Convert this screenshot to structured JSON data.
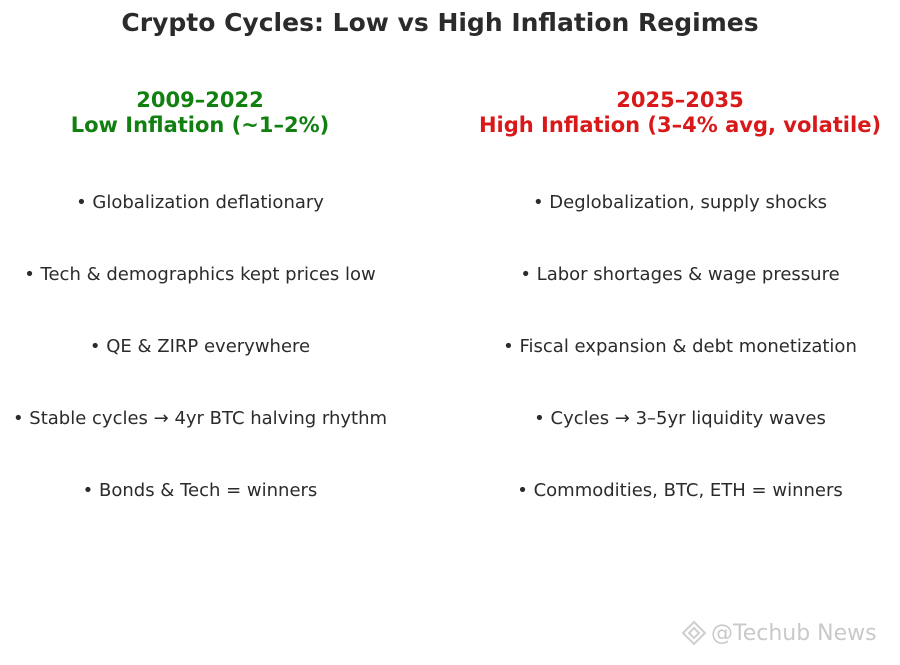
{
  "title": "Crypto Cycles: Low vs High Inflation Regimes",
  "left_column": {
    "period": "2009–2022",
    "regime": "Low Inflation (~1–2%)",
    "color": "#118011",
    "bullets": [
      "Globalization deflationary",
      "Tech & demographics kept prices low",
      "QE & ZIRP everywhere",
      "Stable cycles → 4yr BTC halving rhythm",
      "Bonds & Tech = winners"
    ]
  },
  "right_column": {
    "period": "2025–2035",
    "regime": "High Inflation (3–4% avg, volatile)",
    "color": "#d91919",
    "bullets": [
      "Deglobalization, supply shocks",
      "Labor shortages & wage pressure",
      "Fiscal expansion & debt monetization",
      "Cycles → 3–5yr liquidity waves",
      "Commodities, BTC, ETH = winners"
    ]
  },
  "watermark": {
    "text": "@Techub News",
    "icon": "techub-diamond-logo-icon"
  }
}
